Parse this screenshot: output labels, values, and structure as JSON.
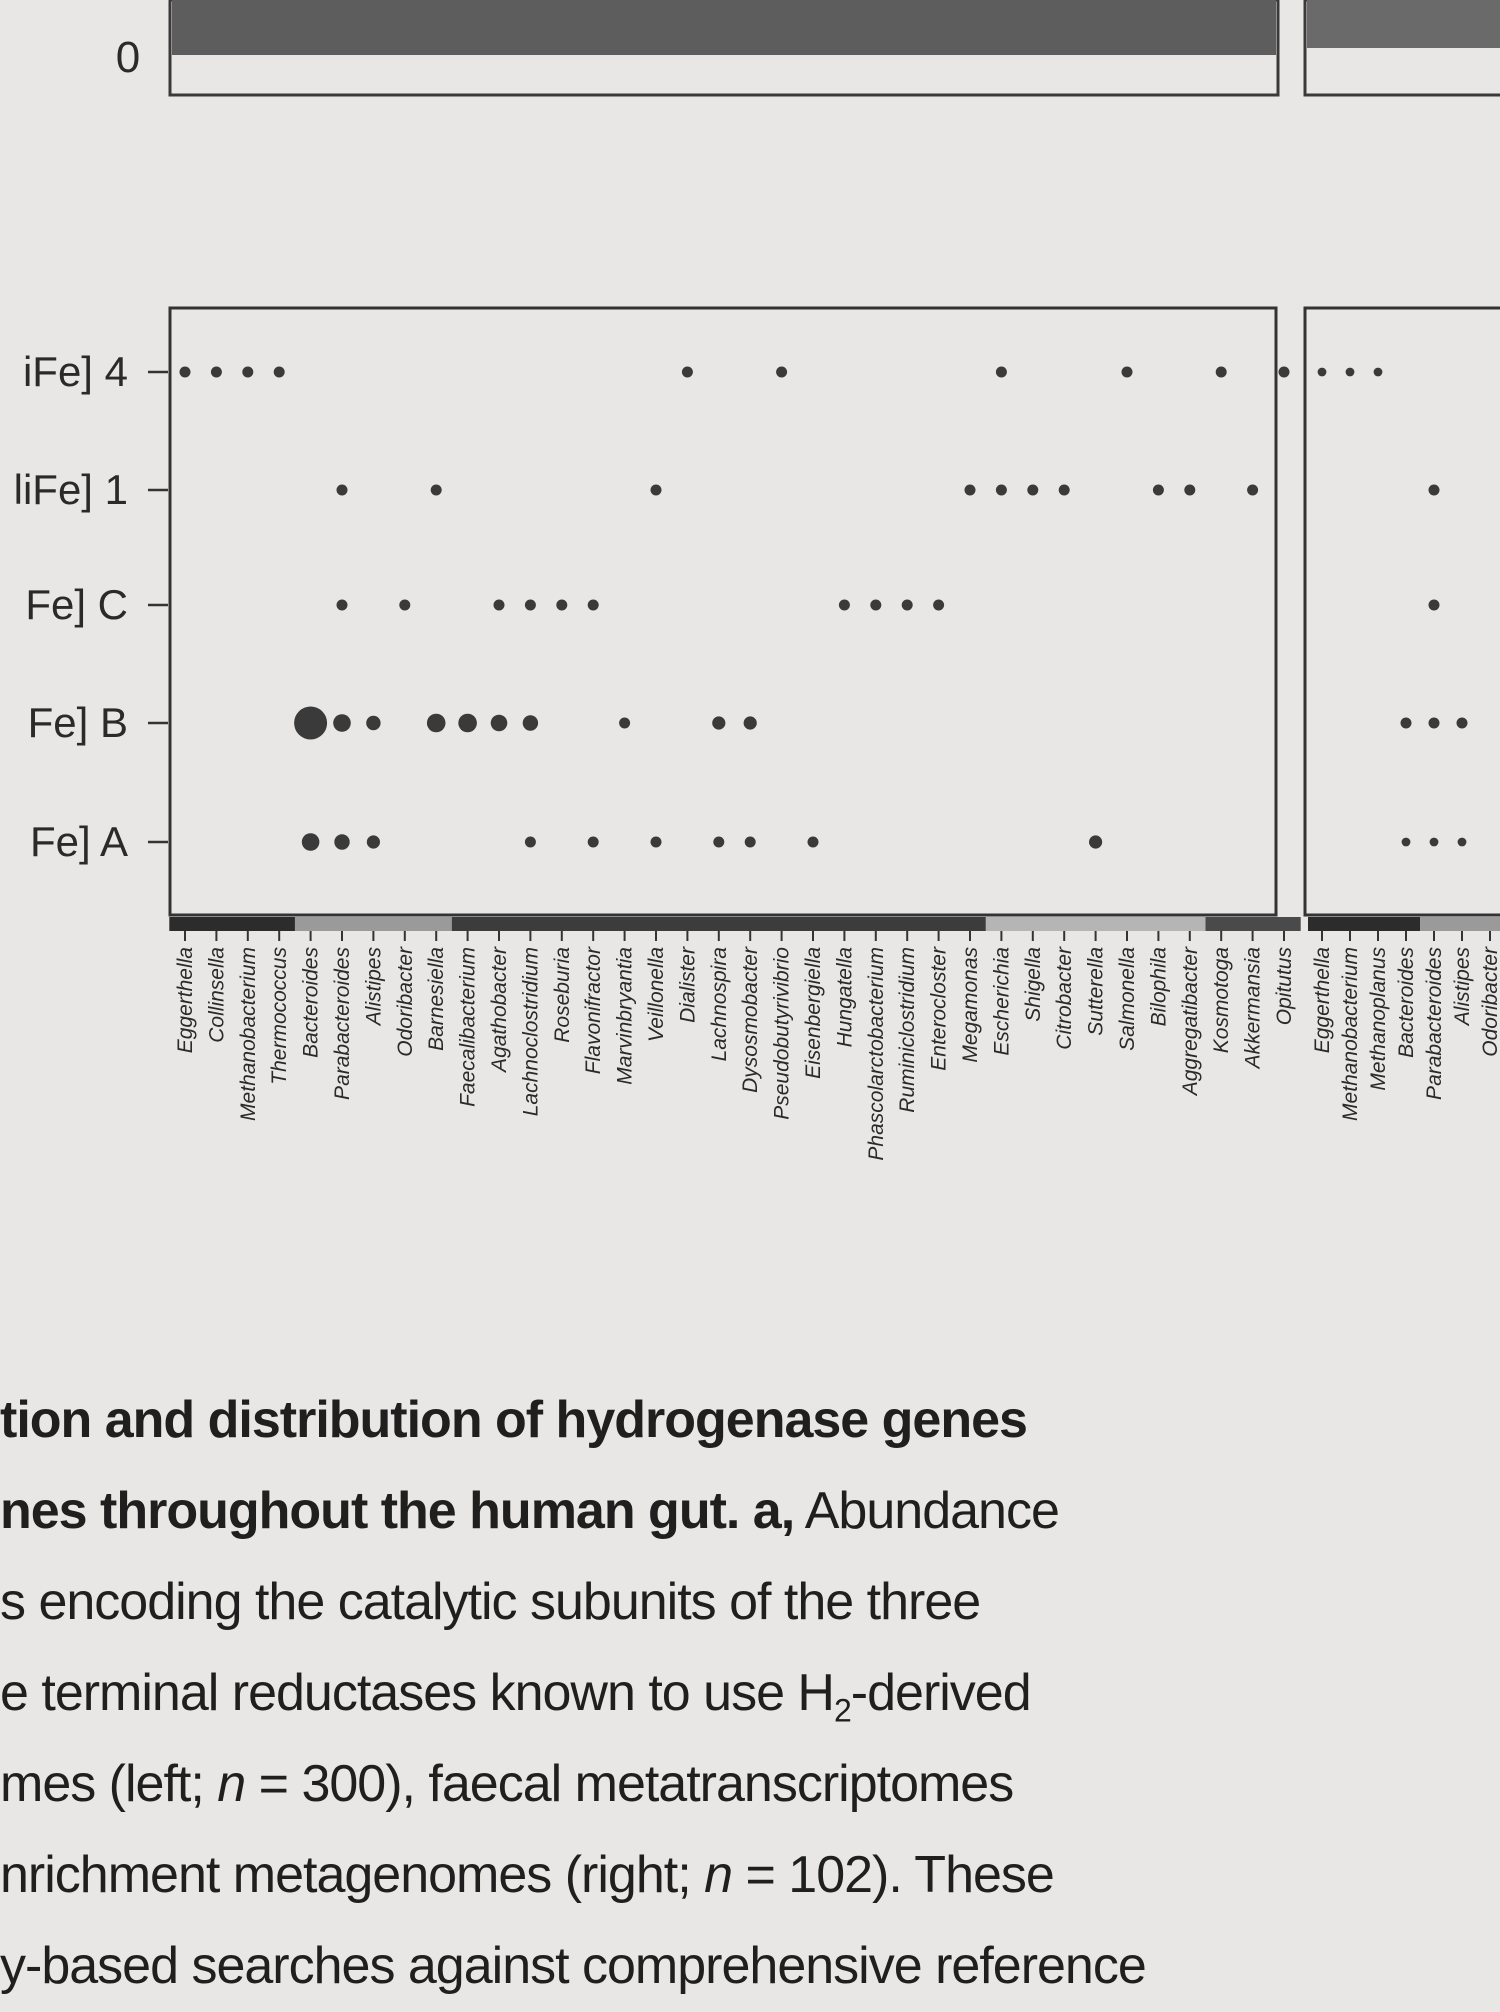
{
  "top_panel": {
    "tick_label": "0"
  },
  "chart_data": {
    "type": "scatter",
    "y_categories": [
      "iFe] 4",
      "liFe] 1",
      "Fe] C",
      "Fe] B",
      "Fe] A"
    ],
    "panels": [
      {
        "name": "left",
        "x_categories": [
          "Eggerthella",
          "Collinsella",
          "Methanobacterium",
          "Thermococcus",
          "Bacteroides",
          "Parabacteroides",
          "Alistipes",
          "Odoribacter",
          "Barnesiella",
          "Faecalibacterium",
          "Agathobacter",
          "Lachnoclostridium",
          "Roseburia",
          "Flavonifractor",
          "Marvinbryantia",
          "Veillonella",
          "Dialister",
          "Lachnospira",
          "Dysosmobacter",
          "Pseudobutyrivibrio",
          "Eisenbergiella",
          "Hungatella",
          "Phascolarctobacterium",
          "Ruminiclostridium",
          "Enterocloster",
          "Megamonas",
          "Escherichia",
          "Shigella",
          "Citrobacter",
          "Sutterella",
          "Salmonella",
          "Bilophila",
          "Aggregatibacter",
          "Kosmotoga",
          "Akkermansia",
          "Opitutus"
        ],
        "points": [
          {
            "x": "Eggerthella",
            "y": "iFe] 4",
            "size": 1
          },
          {
            "x": "Collinsella",
            "y": "iFe] 4",
            "size": 1
          },
          {
            "x": "Methanobacterium",
            "y": "iFe] 4",
            "size": 1
          },
          {
            "x": "Thermococcus",
            "y": "iFe] 4",
            "size": 1
          },
          {
            "x": "Dialister",
            "y": "iFe] 4",
            "size": 1
          },
          {
            "x": "Pseudobutyrivibrio",
            "y": "iFe] 4",
            "size": 1
          },
          {
            "x": "Escherichia",
            "y": "iFe] 4",
            "size": 1
          },
          {
            "x": "Salmonella",
            "y": "iFe] 4",
            "size": 1
          },
          {
            "x": "Kosmotoga",
            "y": "iFe] 4",
            "size": 1
          },
          {
            "x": "Opitutus",
            "y": "iFe] 4",
            "size": 1
          },
          {
            "x": "Parabacteroides",
            "y": "liFe] 1",
            "size": 1
          },
          {
            "x": "Barnesiella",
            "y": "liFe] 1",
            "size": 1
          },
          {
            "x": "Veillonella",
            "y": "liFe] 1",
            "size": 1
          },
          {
            "x": "Megamonas",
            "y": "liFe] 1",
            "size": 1
          },
          {
            "x": "Escherichia",
            "y": "liFe] 1",
            "size": 1
          },
          {
            "x": "Shigella",
            "y": "liFe] 1",
            "size": 1
          },
          {
            "x": "Citrobacter",
            "y": "liFe] 1",
            "size": 1
          },
          {
            "x": "Bilophila",
            "y": "liFe] 1",
            "size": 1
          },
          {
            "x": "Aggregatibacter",
            "y": "liFe] 1",
            "size": 1
          },
          {
            "x": "Akkermansia",
            "y": "liFe] 1",
            "size": 1
          },
          {
            "x": "Parabacteroides",
            "y": "Fe] C",
            "size": 1
          },
          {
            "x": "Odoribacter",
            "y": "Fe] C",
            "size": 1
          },
          {
            "x": "Agathobacter",
            "y": "Fe] C",
            "size": 1
          },
          {
            "x": "Lachnoclostridium",
            "y": "Fe] C",
            "size": 1
          },
          {
            "x": "Roseburia",
            "y": "Fe] C",
            "size": 1
          },
          {
            "x": "Flavonifractor",
            "y": "Fe] C",
            "size": 1
          },
          {
            "x": "Hungatella",
            "y": "Fe] C",
            "size": 1
          },
          {
            "x": "Phascolarctobacterium",
            "y": "Fe] C",
            "size": 1
          },
          {
            "x": "Ruminiclostridium",
            "y": "Fe] C",
            "size": 1
          },
          {
            "x": "Enterocloster",
            "y": "Fe] C",
            "size": 1
          },
          {
            "x": "Bacteroides",
            "y": "Fe] B",
            "size": 3
          },
          {
            "x": "Parabacteroides",
            "y": "Fe] B",
            "size": 1.6
          },
          {
            "x": "Alistipes",
            "y": "Fe] B",
            "size": 1.3
          },
          {
            "x": "Barnesiella",
            "y": "Fe] B",
            "size": 1.7
          },
          {
            "x": "Faecalibacterium",
            "y": "Fe] B",
            "size": 1.7
          },
          {
            "x": "Agathobacter",
            "y": "Fe] B",
            "size": 1.5
          },
          {
            "x": "Lachnoclostridium",
            "y": "Fe] B",
            "size": 1.4
          },
          {
            "x": "Marvinbryantia",
            "y": "Fe] B",
            "size": 1
          },
          {
            "x": "Lachnospira",
            "y": "Fe] B",
            "size": 1.2
          },
          {
            "x": "Dysosmobacter",
            "y": "Fe] B",
            "size": 1.2
          },
          {
            "x": "Bacteroides",
            "y": "Fe] A",
            "size": 1.6
          },
          {
            "x": "Parabacteroides",
            "y": "Fe] A",
            "size": 1.4
          },
          {
            "x": "Alistipes",
            "y": "Fe] A",
            "size": 1.2
          },
          {
            "x": "Lachnoclostridium",
            "y": "Fe] A",
            "size": 1
          },
          {
            "x": "Flavonifractor",
            "y": "Fe] A",
            "size": 1
          },
          {
            "x": "Veillonella",
            "y": "Fe] A",
            "size": 1
          },
          {
            "x": "Lachnospira",
            "y": "Fe] A",
            "size": 1
          },
          {
            "x": "Dysosmobacter",
            "y": "Fe] A",
            "size": 1
          },
          {
            "x": "Eisenbergiella",
            "y": "Fe] A",
            "size": 1
          },
          {
            "x": "Sutterella",
            "y": "Fe] A",
            "size": 1.2
          }
        ]
      },
      {
        "name": "right",
        "x_categories": [
          "Eggerthella",
          "Methanobacterium",
          "Methanoplanus",
          "Bacteroides",
          "Parabacteroides",
          "Alistipes",
          "Odoribacter"
        ],
        "points": [
          {
            "x": "Eggerthella",
            "y": "iFe] 4",
            "size": 0.8
          },
          {
            "x": "Methanobacterium",
            "y": "iFe] 4",
            "size": 0.8
          },
          {
            "x": "Methanoplanus",
            "y": "iFe] 4",
            "size": 0.8
          },
          {
            "x": "Parabacteroides",
            "y": "liFe] 1",
            "size": 1
          },
          {
            "x": "Parabacteroides",
            "y": "Fe] C",
            "size": 1
          },
          {
            "x": "Bacteroides",
            "y": "Fe] B",
            "size": 1
          },
          {
            "x": "Parabacteroides",
            "y": "Fe] B",
            "size": 1
          },
          {
            "x": "Alistipes",
            "y": "Fe] B",
            "size": 1
          },
          {
            "x": "Bacteroides",
            "y": "Fe] A",
            "size": 0.8
          },
          {
            "x": "Parabacteroides",
            "y": "Fe] A",
            "size": 0.8
          },
          {
            "x": "Alistipes",
            "y": "Fe] A",
            "size": 0.8
          }
        ]
      }
    ]
  },
  "caption": {
    "line1": "tion and distribution of hydrogenase genes",
    "line2_bold": "nes throughout the human gut. a,",
    "line2_rest": " Abundance",
    "line3": "s encoding the catalytic subunits of the three",
    "line4_pre": "e terminal reductases known to use H",
    "line4_sub": "2",
    "line4_post": "-derived",
    "line5_pre": "mes (left; ",
    "line5_n": "n",
    "line5_post": " = 300), faecal metatranscriptomes",
    "line6_pre": "nrichment metagenomes (right; ",
    "line6_n": "n",
    "line6_post": " = 102). These",
    "line7": "y-based searches against comprehensive reference"
  }
}
